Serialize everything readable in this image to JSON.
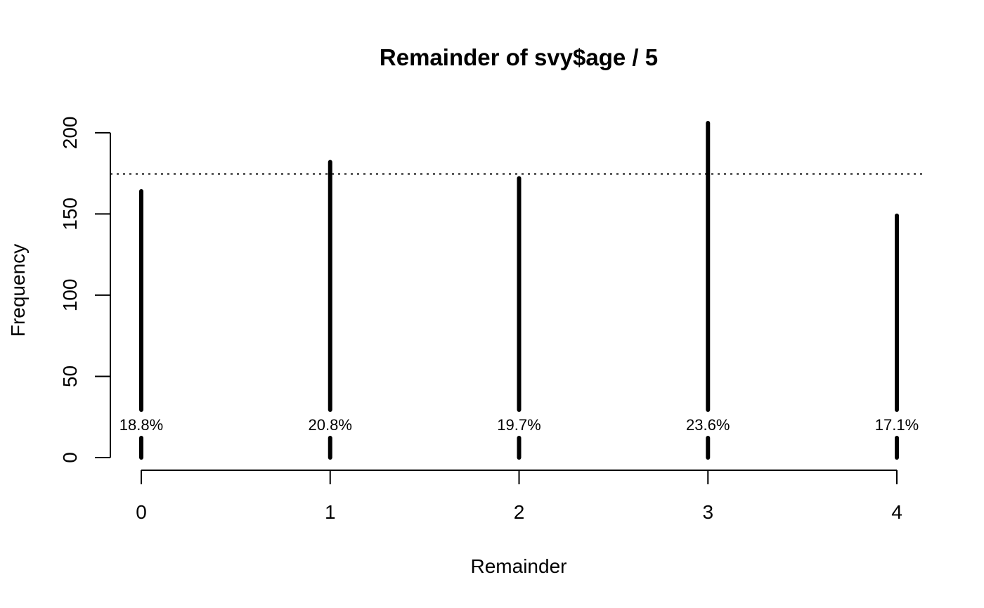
{
  "chart_data": {
    "type": "bar",
    "title": "Remainder of svy$age / 5",
    "xlabel": "Remainder",
    "ylabel": "Frequency",
    "categories": [
      "0",
      "1",
      "2",
      "3",
      "4"
    ],
    "values": [
      164,
      182,
      172,
      206,
      149
    ],
    "data_labels": [
      "18.8%",
      "20.8%",
      "19.7%",
      "23.6%",
      "17.1%"
    ],
    "yticks": [
      0,
      50,
      100,
      150,
      200
    ],
    "ylim": [
      0,
      206
    ],
    "reference_line": 174.6,
    "grid": false,
    "legend": "none"
  }
}
